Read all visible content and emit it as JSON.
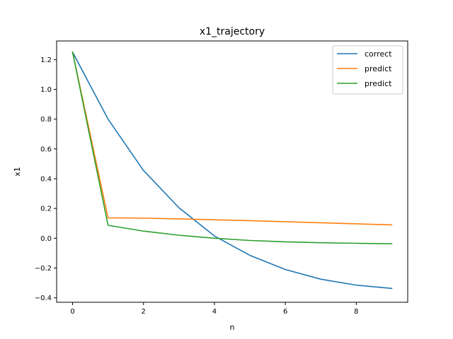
{
  "chart_data": {
    "type": "line",
    "title": "x1_trajectory",
    "xlabel": "n",
    "ylabel": "x1",
    "x": [
      0,
      1,
      2,
      3,
      4,
      5,
      6,
      7,
      8,
      9
    ],
    "xlim": [
      -0.45,
      9.45
    ],
    "ylim": [
      -0.43,
      1.325
    ],
    "xticks": [
      0,
      2,
      4,
      6,
      8
    ],
    "yticks": [
      -0.4,
      -0.2,
      0.0,
      0.2,
      0.4,
      0.6,
      0.8,
      1.0,
      1.2
    ],
    "ytick_labels": [
      "−0.4",
      "−0.2",
      "0.0",
      "0.2",
      "0.4",
      "0.6",
      "0.8",
      "1.0",
      "1.2"
    ],
    "grid": false,
    "legend_position": "top-right",
    "series": [
      {
        "name": "correct",
        "color": "#1f77b4",
        "values": [
          1.25,
          0.8,
          0.455,
          0.205,
          0.015,
          -0.115,
          -0.21,
          -0.275,
          -0.315,
          -0.337
        ]
      },
      {
        "name": "predict",
        "color": "#ff7f0e",
        "values": [
          1.25,
          0.137,
          0.135,
          0.13,
          0.124,
          0.118,
          0.111,
          0.104,
          0.097,
          0.09
        ]
      },
      {
        "name": "predict",
        "color": "#2ca02c",
        "values": [
          1.25,
          0.087,
          0.048,
          0.02,
          0.0,
          -0.015,
          -0.024,
          -0.03,
          -0.034,
          -0.037
        ]
      }
    ]
  }
}
